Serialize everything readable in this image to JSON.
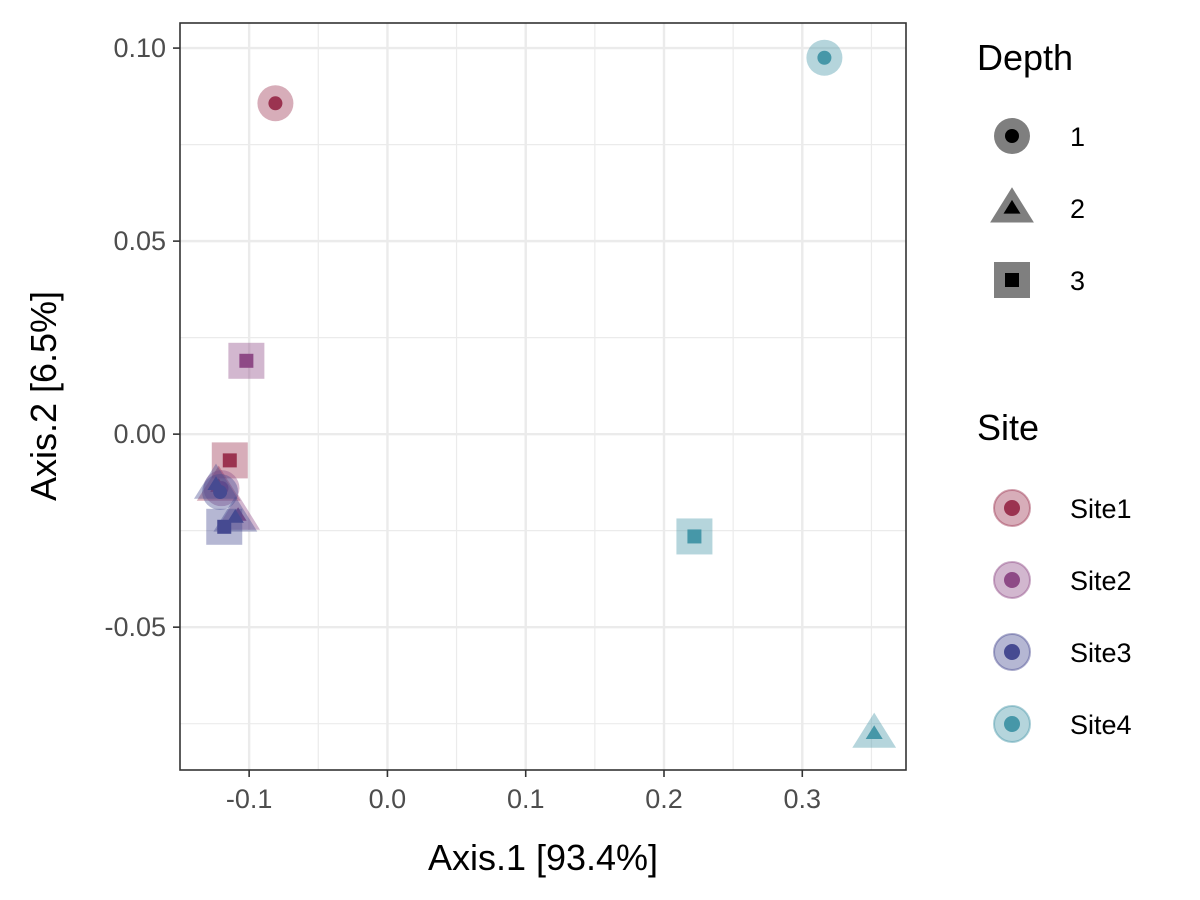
{
  "chart_data": {
    "type": "scatter",
    "xlabel": "Axis.1   [93.4%]",
    "ylabel": "Axis.2   [6.5%]",
    "xlim": [
      -0.15,
      0.375
    ],
    "ylim": [
      -0.087,
      0.1065
    ],
    "x_ticks": [
      -0.1,
      0.0,
      0.1,
      0.2,
      0.3
    ],
    "x_tick_labels": [
      "-0.1",
      "0.0",
      "0.1",
      "0.2",
      "0.3"
    ],
    "y_ticks": [
      -0.05,
      0.0,
      0.05,
      0.1
    ],
    "y_tick_labels": [
      "-0.05",
      "0.00",
      "0.05",
      "0.10"
    ],
    "grid": true,
    "legends": [
      {
        "title": "Depth",
        "kind": "shape",
        "entries": [
          {
            "label": "1",
            "shape": "circle"
          },
          {
            "label": "2",
            "shape": "triangle"
          },
          {
            "label": "3",
            "shape": "square"
          }
        ]
      },
      {
        "title": "Site",
        "kind": "color",
        "entries": [
          {
            "label": "Site1",
            "color": "#9b3350"
          },
          {
            "label": "Site2",
            "color": "#8e4a86"
          },
          {
            "label": "Site3",
            "color": "#464a91"
          },
          {
            "label": "Site4",
            "color": "#4697a8"
          }
        ]
      }
    ],
    "legend_position": "right",
    "points": [
      {
        "site": "Site1",
        "depth": "1",
        "x": -0.081,
        "y": 0.0857
      },
      {
        "site": "Site1",
        "depth": "2",
        "x": -0.122,
        "y": -0.0135
      },
      {
        "site": "Site1",
        "depth": "3",
        "x": -0.114,
        "y": -0.0068
      },
      {
        "site": "Site2",
        "depth": "1",
        "x": -0.12,
        "y": -0.014
      },
      {
        "site": "Site2",
        "depth": "2",
        "x": -0.108,
        "y": -0.021
      },
      {
        "site": "Site2",
        "depth": "3",
        "x": -0.102,
        "y": 0.019
      },
      {
        "site": "Site3",
        "depth": "1",
        "x": -0.121,
        "y": -0.015
      },
      {
        "site": "Site3",
        "depth": "2",
        "x": -0.124,
        "y": -0.013
      },
      {
        "site": "Site3",
        "depth": "3",
        "x": -0.118,
        "y": -0.024
      },
      {
        "site": "Site3",
        "depth": "2",
        "x": -0.11,
        "y": -0.0215
      },
      {
        "site": "Site4",
        "depth": "1",
        "x": 0.316,
        "y": 0.0975
      },
      {
        "site": "Site4",
        "depth": "2",
        "x": 0.352,
        "y": -0.0775
      },
      {
        "site": "Site4",
        "depth": "3",
        "x": 0.222,
        "y": -0.0265
      }
    ]
  }
}
